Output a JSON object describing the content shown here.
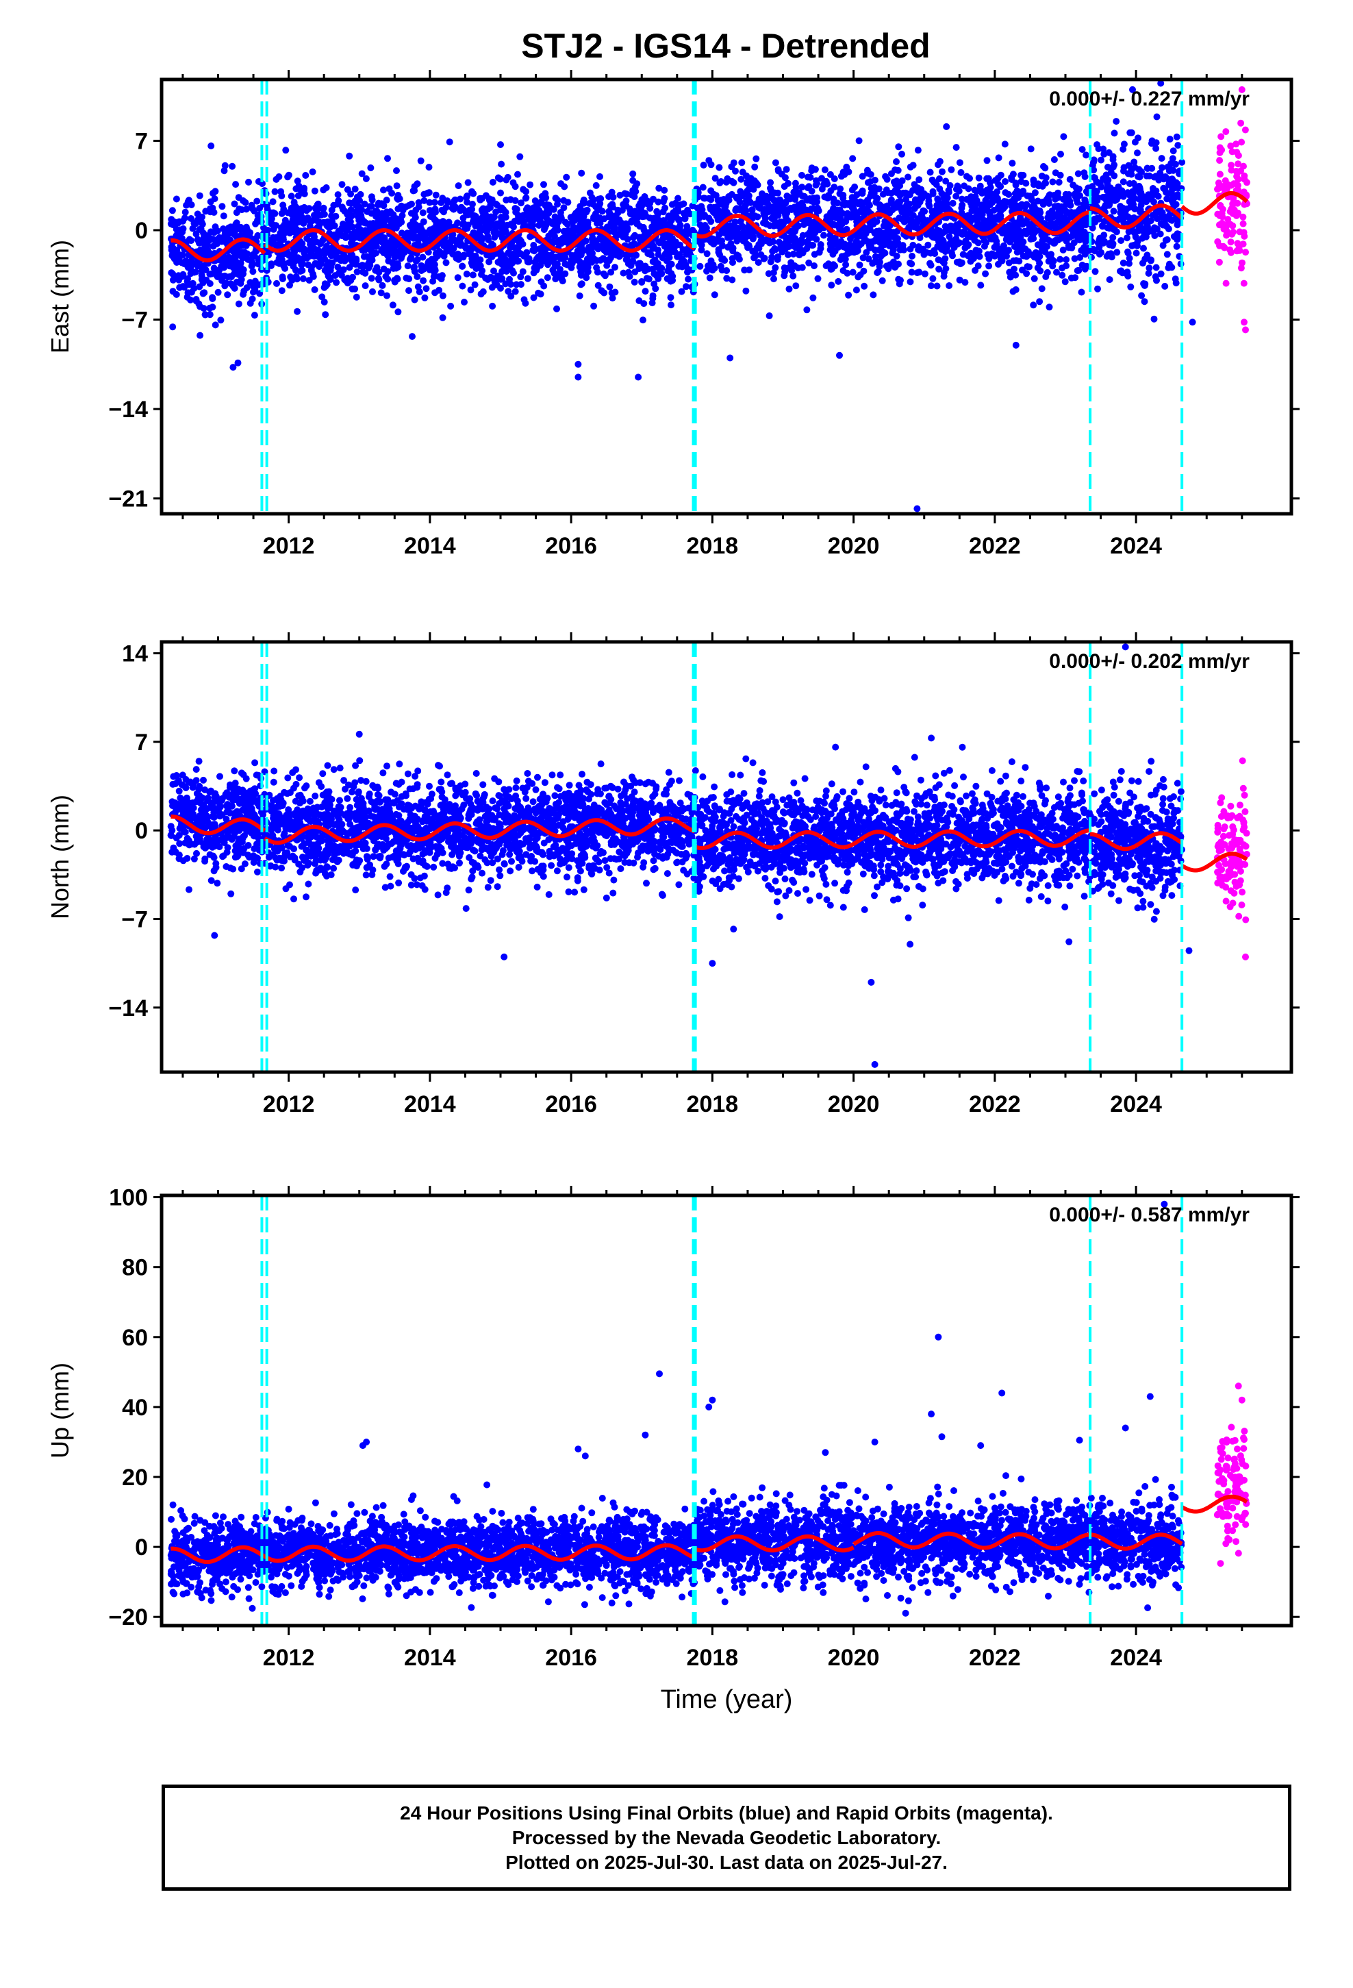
{
  "title": "STJ2 - IGS14 - Detrended",
  "footer": {
    "line1": "24 Hour Positions Using Final Orbits (blue) and Rapid Orbits (magenta).",
    "line2": "Processed by the Nevada Geodetic Laboratory.",
    "line3": "Plotted on 2025-Jul-30. Last data on 2025-Jul-27."
  },
  "colors": {
    "final_orbits": "#0000ff",
    "rapid_orbits": "#ff00ff",
    "model_fit": "#ff0000",
    "event_lines": "#00ffff"
  },
  "chart_data": [
    {
      "type": "scatter",
      "ylabel": "East (mm)",
      "xlabel": "",
      "annotation": "0.000+/- 0.227 mm/yr",
      "xlim": [
        2010.2,
        2026.2
      ],
      "ylim": [
        -22.2,
        11.8
      ],
      "yticks": [
        7,
        0,
        -7,
        -14,
        -21
      ],
      "ytick_labels": [
        "7",
        "0",
        "−7",
        "−14",
        "−21"
      ],
      "xticks": [
        2012,
        2014,
        2016,
        2018,
        2020,
        2022,
        2024
      ],
      "event_lines": [
        2011.62,
        2011.69,
        2017.73,
        2017.76,
        2023.35,
        2024.65
      ],
      "fit_segments": [
        {
          "x0": 2010.33,
          "x1": 2011.66,
          "level_start": -1.6,
          "level_end": -1.5,
          "amplitude": 0.8
        },
        {
          "x0": 2011.66,
          "x1": 2017.75,
          "level_start": -0.8,
          "level_end": -0.8,
          "amplitude": 0.8
        },
        {
          "x0": 2017.75,
          "x1": 2023.35,
          "level_start": 0.3,
          "level_end": 0.6,
          "amplitude": 0.8
        },
        {
          "x0": 2023.35,
          "x1": 2024.65,
          "level_start": 0.9,
          "level_end": 1.2,
          "amplitude": 0.8
        },
        {
          "x0": 2024.65,
          "x1": 2025.57,
          "level_start": 2.1,
          "level_end": 2.1,
          "amplitude": 0.8
        }
      ],
      "scatter_bands": [
        {
          "x0": 2010.33,
          "x1": 2011.66,
          "center": -1.5,
          "sd": 2.2
        },
        {
          "x0": 2011.66,
          "x1": 2017.75,
          "center": -0.6,
          "sd": 2.0
        },
        {
          "x0": 2017.75,
          "x1": 2023.35,
          "center": 0.5,
          "sd": 2.1
        },
        {
          "x0": 2023.35,
          "x1": 2024.65,
          "center": 1.6,
          "sd": 2.6
        }
      ],
      "rapid_band": {
        "x0": 2025.15,
        "x1": 2025.57,
        "center": 2.5,
        "sd": 3.0
      },
      "outliers": [
        [
          2010.9,
          6.6
        ],
        [
          2011.2,
          5.0
        ],
        [
          2015.0,
          6.7
        ],
        [
          2016.1,
          -10.5
        ],
        [
          2016.1,
          -11.5
        ],
        [
          2016.95,
          -11.5
        ],
        [
          2018.25,
          -10.0
        ],
        [
          2019.8,
          -9.8
        ],
        [
          2020.9,
          -21.8
        ],
        [
          2022.3,
          -9.0
        ],
        [
          2023.95,
          11.0
        ],
        [
          2024.35,
          11.5
        ],
        [
          2024.8,
          -7.2
        ],
        [
          2025.55,
          -7.8
        ],
        [
          2025.5,
          11.0
        ]
      ],
      "series": [
        {
          "name": "Final Orbits (blue)",
          "color": "#0000ff"
        },
        {
          "name": "Rapid Orbits (magenta)",
          "color": "#ff00ff"
        }
      ]
    },
    {
      "type": "scatter",
      "ylabel": "North (mm)",
      "xlabel": "",
      "annotation": "0.000+/- 0.202 mm/yr",
      "xlim": [
        2010.2,
        2026.2
      ],
      "ylim": [
        -19.1,
        14.9
      ],
      "yticks": [
        14,
        7,
        0,
        -7,
        -14
      ],
      "ytick_labels": [
        "14",
        "7",
        "0",
        "−7",
        "−14"
      ],
      "xticks": [
        2012,
        2014,
        2016,
        2018,
        2020,
        2022,
        2024
      ],
      "event_lines": [
        2011.62,
        2011.69,
        2017.73,
        2017.76,
        2023.35,
        2024.65
      ],
      "fit_segments": [
        {
          "x0": 2010.33,
          "x1": 2011.66,
          "level_start": 0.5,
          "level_end": 0.2,
          "amplitude": 0.6
        },
        {
          "x0": 2011.66,
          "x1": 2017.75,
          "level_start": -0.4,
          "level_end": 0.4,
          "amplitude": 0.6
        },
        {
          "x0": 2017.75,
          "x1": 2023.35,
          "level_start": -0.8,
          "level_end": -0.6,
          "amplitude": 0.6
        },
        {
          "x0": 2023.35,
          "x1": 2024.65,
          "level_start": -0.9,
          "level_end": -0.8,
          "amplitude": 0.6
        },
        {
          "x0": 2024.65,
          "x1": 2025.57,
          "level_start": -2.6,
          "level_end": -2.4,
          "amplitude": 0.6
        }
      ],
      "scatter_bands": [
        {
          "x0": 2010.33,
          "x1": 2011.66,
          "center": 0.6,
          "sd": 1.8
        },
        {
          "x0": 2011.66,
          "x1": 2017.75,
          "center": 0.2,
          "sd": 1.8
        },
        {
          "x0": 2017.75,
          "x1": 2023.35,
          "center": -0.6,
          "sd": 1.9
        },
        {
          "x0": 2023.35,
          "x1": 2024.65,
          "center": -1.0,
          "sd": 2.0
        }
      ],
      "rapid_band": {
        "x0": 2025.15,
        "x1": 2025.57,
        "center": -1.5,
        "sd": 2.5
      },
      "outliers": [
        [
          2010.95,
          -8.3
        ],
        [
          2013.0,
          7.6
        ],
        [
          2015.05,
          -10.0
        ],
        [
          2018.0,
          -10.5
        ],
        [
          2018.3,
          -7.8
        ],
        [
          2020.25,
          -12.0
        ],
        [
          2020.3,
          -18.5
        ],
        [
          2020.8,
          -9.0
        ],
        [
          2021.1,
          7.3
        ],
        [
          2023.05,
          -8.8
        ],
        [
          2023.85,
          14.5
        ],
        [
          2024.75,
          -9.5
        ],
        [
          2025.55,
          -10.0
        ]
      ],
      "series": [
        {
          "name": "Final Orbits (blue)",
          "color": "#0000ff"
        },
        {
          "name": "Rapid Orbits (magenta)",
          "color": "#ff00ff"
        }
      ]
    },
    {
      "type": "scatter",
      "ylabel": "Up (mm)",
      "xlabel": "Time (year)",
      "annotation": "0.000+/- 0.587 mm/yr",
      "xlim": [
        2010.2,
        2026.2
      ],
      "ylim": [
        -22.5,
        100.5
      ],
      "yticks": [
        100,
        80,
        60,
        40,
        20,
        0,
        -20
      ],
      "ytick_labels": [
        "100",
        "80",
        "60",
        "40",
        "20",
        "0",
        "−20"
      ],
      "xticks": [
        2012,
        2014,
        2016,
        2018,
        2020,
        2022,
        2024
      ],
      "event_lines": [
        2011.62,
        2011.69,
        2017.73,
        2017.76,
        2023.35,
        2024.65
      ],
      "fit_segments": [
        {
          "x0": 2010.33,
          "x1": 2011.66,
          "level_start": -2.5,
          "level_end": -2.0,
          "amplitude": 2.0
        },
        {
          "x0": 2011.66,
          "x1": 2017.75,
          "level_start": -2.0,
          "level_end": -1.5,
          "amplitude": 2.0
        },
        {
          "x0": 2017.75,
          "x1": 2020.0,
          "level_start": 1.0,
          "level_end": 1.0,
          "amplitude": 2.0
        },
        {
          "x0": 2020.0,
          "x1": 2023.35,
          "level_start": 2.0,
          "level_end": 1.5,
          "amplitude": 2.0
        },
        {
          "x0": 2023.35,
          "x1": 2024.65,
          "level_start": 1.5,
          "level_end": 1.5,
          "amplitude": 2.0
        },
        {
          "x0": 2024.65,
          "x1": 2025.57,
          "level_start": 12.0,
          "level_end": 12.5,
          "amplitude": 2.0
        }
      ],
      "scatter_bands": [
        {
          "x0": 2010.33,
          "x1": 2011.66,
          "center": -2.0,
          "sd": 5.0
        },
        {
          "x0": 2011.66,
          "x1": 2017.75,
          "center": -1.5,
          "sd": 5.0
        },
        {
          "x0": 2017.75,
          "x1": 2023.35,
          "center": 1.5,
          "sd": 5.5
        },
        {
          "x0": 2023.35,
          "x1": 2024.65,
          "center": 1.5,
          "sd": 5.5
        }
      ],
      "rapid_band": {
        "x0": 2025.15,
        "x1": 2025.57,
        "center": 15.0,
        "sd": 9.0
      },
      "outliers": [
        [
          2013.05,
          29.0
        ],
        [
          2013.1,
          30.0
        ],
        [
          2016.1,
          28.0
        ],
        [
          2016.2,
          26.0
        ],
        [
          2017.05,
          32.0
        ],
        [
          2017.25,
          49.5
        ],
        [
          2017.95,
          40.0
        ],
        [
          2018.0,
          42.0
        ],
        [
          2019.6,
          27.0
        ],
        [
          2020.3,
          30.0
        ],
        [
          2021.1,
          38.0
        ],
        [
          2021.2,
          60.0
        ],
        [
          2021.25,
          31.5
        ],
        [
          2021.8,
          29.0
        ],
        [
          2022.1,
          44.0
        ],
        [
          2023.2,
          30.5
        ],
        [
          2023.85,
          34.0
        ],
        [
          2024.2,
          43.0
        ],
        [
          2024.4,
          98.0
        ],
        [
          2025.45,
          46.0
        ],
        [
          2025.5,
          42.0
        ]
      ],
      "series": [
        {
          "name": "Final Orbits (blue)",
          "color": "#0000ff"
        },
        {
          "name": "Rapid Orbits (magenta)",
          "color": "#ff00ff"
        }
      ]
    }
  ]
}
